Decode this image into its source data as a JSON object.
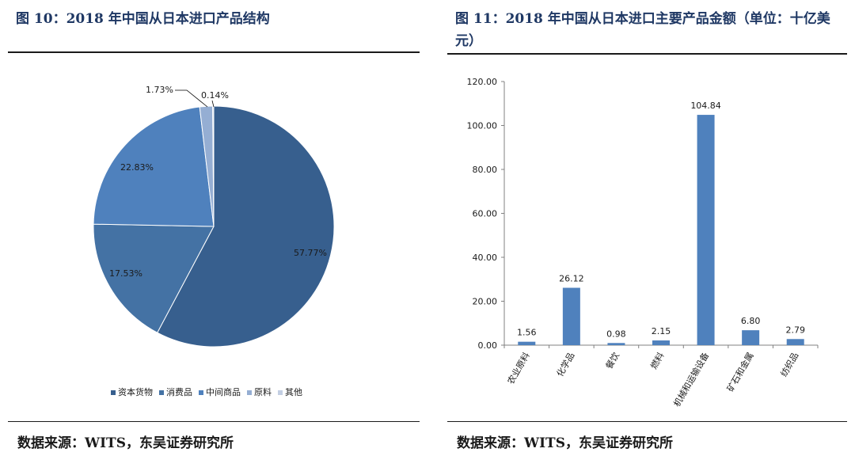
{
  "left": {
    "title": "图 10：2018 年中国从日本进口产品结构",
    "source": "数据来源：WITS，东吴证券研究所"
  },
  "right": {
    "title": "图 11：2018 年中国从日本进口主要产品金额（单位：十亿美元）",
    "source": "数据来源：WITS，东吴证券研究所"
  },
  "chart_data": [
    {
      "type": "pie",
      "title": "",
      "categories": [
        "资本货物",
        "消费品",
        "中间商品",
        "原料",
        "其他"
      ],
      "values": [
        57.77,
        17.53,
        22.83,
        1.73,
        0.14
      ],
      "value_labels": [
        "57.77%",
        "17.53%",
        "22.83%",
        "1.73%",
        "0.14%"
      ],
      "colors": [
        "#375f8e",
        "#4472a4",
        "#4f81bd",
        "#95aed3",
        "#c3cfe3"
      ],
      "legend": "bottom",
      "start_angle": "12 o'clock, clockwise"
    },
    {
      "type": "bar",
      "title": "",
      "categories": [
        "农业原料",
        "化学品",
        "餐饮",
        "燃料",
        "机械和运输设备",
        "矿石和金属",
        "纺织品"
      ],
      "values": [
        1.56,
        26.12,
        0.98,
        2.15,
        104.84,
        6.8,
        2.79
      ],
      "value_labels": [
        "1.56",
        "26.12",
        "0.98",
        "2.15",
        "104.84",
        "6.80",
        "2.79"
      ],
      "ylim": [
        0,
        120
      ],
      "yticks": [
        "0.00",
        "20.00",
        "40.00",
        "60.00",
        "80.00",
        "100.00",
        "120.00"
      ],
      "bar_color": "#4f81bd",
      "grid": false,
      "xlabel": "",
      "ylabel": ""
    }
  ]
}
